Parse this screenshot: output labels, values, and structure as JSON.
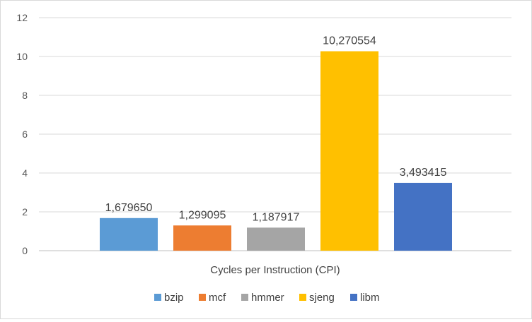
{
  "chart_data": {
    "type": "bar",
    "xlabel": "Cycles per Instruction (CPI)",
    "ylabel": "",
    "ylim": [
      0,
      12
    ],
    "yticks": [
      0,
      2,
      4,
      6,
      8,
      10,
      12
    ],
    "grid": true,
    "legend_position": "bottom",
    "series": [
      {
        "name": "bzip",
        "value": 1.67965,
        "label": "1,679650",
        "color": "#5b9bd5"
      },
      {
        "name": "mcf",
        "value": 1.299095,
        "label": "1,299095",
        "color": "#ed7d31"
      },
      {
        "name": "hmmer",
        "value": 1.187917,
        "label": "1,187917",
        "color": "#a5a5a5"
      },
      {
        "name": "sjeng",
        "value": 10.270554,
        "label": "10,270554",
        "color": "#ffc000"
      },
      {
        "name": "libm",
        "value": 3.493415,
        "label": "3,493415",
        "color": "#4472c4"
      }
    ]
  }
}
